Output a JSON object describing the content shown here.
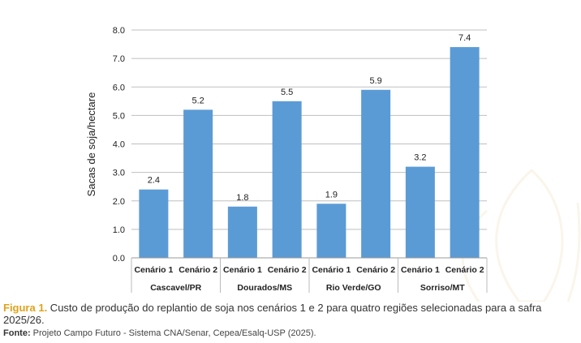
{
  "chart_data": {
    "type": "bar",
    "title": "",
    "ylabel": "Sacas de soja/hectare",
    "xlabel": "",
    "ylim": [
      0,
      8
    ],
    "yticks": [
      "0.0",
      "1.0",
      "2.0",
      "3.0",
      "4.0",
      "5.0",
      "6.0",
      "7.0",
      "8.0"
    ],
    "grid": true,
    "groups": [
      "Cascavel/PR",
      "Dourados/MS",
      "Rio Verde/GO",
      "Sorriso/MT"
    ],
    "categories": [
      "Cenário 1",
      "Cenário 2"
    ],
    "values": [
      [
        2.4,
        5.2
      ],
      [
        1.8,
        5.5
      ],
      [
        1.9,
        5.9
      ],
      [
        3.2,
        7.4
      ]
    ],
    "value_labels": [
      [
        "2.4",
        "5.2"
      ],
      [
        "1.8",
        "5.5"
      ],
      [
        "1.9",
        "5.9"
      ],
      [
        "3.2",
        "7.4"
      ]
    ],
    "bar_color": "#5b9bd5"
  },
  "caption": {
    "label": "Figura 1.",
    "text": " Custo de produção do replantio de soja nos cenários 1 e 2 para quatro regiões selecionadas para a safra 2025/26."
  },
  "source": {
    "label": "Fonte:",
    "text": " Projeto Campo Futuro - Sistema CNA/Senar, Cepea/Esalq-USP (2025)."
  },
  "colors": {
    "accent": "#e0a21b",
    "bar": "#5b9bd5",
    "grid": "#bfbfbf"
  }
}
